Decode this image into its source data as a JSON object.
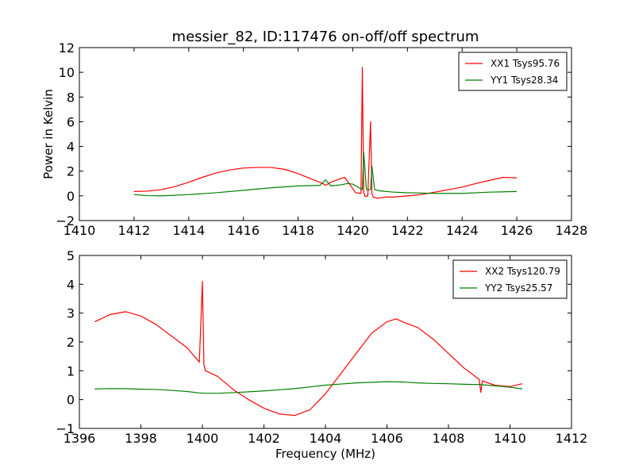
{
  "figure_title": "messier_82, ID:117476 on-off/off spectrum",
  "chart_data": [
    {
      "type": "line",
      "ylabel": "Power in Kelvin",
      "xlabel": "",
      "xlim": [
        1410,
        1428
      ],
      "ylim": [
        -2,
        12
      ],
      "xticks": [
        "1410",
        "1412",
        "1414",
        "1416",
        "1418",
        "1420",
        "1422",
        "1424",
        "1426",
        "1428"
      ],
      "yticks": [
        "−2",
        "0",
        "2",
        "4",
        "6",
        "8",
        "10",
        "12"
      ],
      "grid": false,
      "legend": "top-right",
      "series": [
        {
          "name": "XX1 Tsys95.76",
          "color": "#ff0000",
          "x": [
            1412.0,
            1412.5,
            1413.0,
            1413.5,
            1414.0,
            1414.5,
            1415.0,
            1415.5,
            1416.0,
            1416.5,
            1417.0,
            1417.5,
            1418.0,
            1418.5,
            1418.9,
            1419.0,
            1419.2,
            1419.5,
            1419.7,
            1419.9,
            1420.1,
            1420.3,
            1420.35,
            1420.4,
            1420.45,
            1420.55,
            1420.65,
            1420.7,
            1420.75,
            1420.9,
            1421.2,
            1421.5,
            1422.0,
            1422.5,
            1423.0,
            1423.5,
            1424.0,
            1424.5,
            1425.0,
            1425.5,
            1426.0
          ],
          "y": [
            0.35,
            0.38,
            0.5,
            0.75,
            1.1,
            1.5,
            1.85,
            2.1,
            2.25,
            2.3,
            2.3,
            2.15,
            1.8,
            1.35,
            1.0,
            0.85,
            1.1,
            1.35,
            1.5,
            0.9,
            0.25,
            0.2,
            10.4,
            0.3,
            -0.05,
            0.0,
            6.0,
            0.2,
            -0.1,
            -0.2,
            -0.1,
            -0.1,
            0.0,
            0.1,
            0.3,
            0.5,
            0.7,
            1.0,
            1.25,
            1.5,
            1.45
          ]
        },
        {
          "name": "YY1 Tsys28.34",
          "color": "#008000",
          "x": [
            1412.0,
            1412.5,
            1413.0,
            1414.0,
            1415.0,
            1416.0,
            1417.0,
            1418.0,
            1418.8,
            1419.0,
            1419.2,
            1419.6,
            1419.8,
            1420.0,
            1420.2,
            1420.35,
            1420.4,
            1420.5,
            1420.65,
            1420.7,
            1420.8,
            1421.0,
            1421.5,
            1422.0,
            1423.0,
            1424.0,
            1425.0,
            1426.0
          ],
          "y": [
            0.1,
            0.02,
            0.0,
            0.1,
            0.25,
            0.45,
            0.65,
            0.8,
            0.85,
            1.3,
            0.8,
            0.9,
            1.0,
            0.95,
            0.7,
            0.5,
            3.5,
            0.5,
            0.5,
            2.4,
            0.5,
            0.4,
            0.3,
            0.25,
            0.2,
            0.2,
            0.3,
            0.35
          ]
        }
      ]
    },
    {
      "type": "line",
      "ylabel": "",
      "xlabel": "Frequency (MHz)",
      "xlim": [
        1396,
        1412
      ],
      "ylim": [
        -1,
        5
      ],
      "xticks": [
        "1396",
        "1398",
        "1400",
        "1402",
        "1404",
        "1406",
        "1408",
        "1410",
        "1412"
      ],
      "yticks": [
        "−1",
        "0",
        "1",
        "2",
        "3",
        "4",
        "5"
      ],
      "grid": false,
      "legend": "top-right",
      "series": [
        {
          "name": "XX2 Tsys120.79",
          "color": "#ff0000",
          "x": [
            1396.5,
            1397.0,
            1397.5,
            1398.0,
            1398.5,
            1399.0,
            1399.5,
            1399.9,
            1400.0,
            1400.05,
            1400.1,
            1400.5,
            1401.0,
            1401.5,
            1402.0,
            1402.5,
            1403.0,
            1403.5,
            1404.0,
            1404.5,
            1405.0,
            1405.5,
            1406.0,
            1406.3,
            1406.5,
            1407.0,
            1407.5,
            1408.0,
            1408.5,
            1409.0,
            1409.05,
            1409.1,
            1409.5,
            1410.0,
            1410.4
          ],
          "y": [
            2.7,
            2.95,
            3.05,
            2.9,
            2.6,
            2.2,
            1.8,
            1.3,
            4.1,
            1.2,
            1.0,
            0.8,
            0.35,
            0.0,
            -0.3,
            -0.5,
            -0.55,
            -0.35,
            0.2,
            0.9,
            1.6,
            2.3,
            2.7,
            2.8,
            2.7,
            2.5,
            2.1,
            1.6,
            1.1,
            0.7,
            0.25,
            0.65,
            0.5,
            0.45,
            0.55
          ]
        },
        {
          "name": "YY2 Tsys25.57",
          "color": "#008000",
          "x": [
            1396.5,
            1397.0,
            1397.5,
            1398.0,
            1398.5,
            1399.0,
            1399.5,
            1400.0,
            1400.5,
            1401.0,
            1401.5,
            1402.0,
            1402.5,
            1403.0,
            1403.5,
            1404.0,
            1404.5,
            1405.0,
            1405.5,
            1406.0,
            1406.5,
            1407.0,
            1407.5,
            1408.0,
            1408.5,
            1409.0,
            1409.5,
            1410.0,
            1410.4
          ],
          "y": [
            0.37,
            0.38,
            0.38,
            0.36,
            0.35,
            0.32,
            0.28,
            0.22,
            0.22,
            0.24,
            0.27,
            0.3,
            0.34,
            0.38,
            0.44,
            0.5,
            0.54,
            0.58,
            0.6,
            0.62,
            0.61,
            0.58,
            0.56,
            0.55,
            0.53,
            0.52,
            0.48,
            0.43,
            0.37
          ]
        }
      ]
    }
  ]
}
